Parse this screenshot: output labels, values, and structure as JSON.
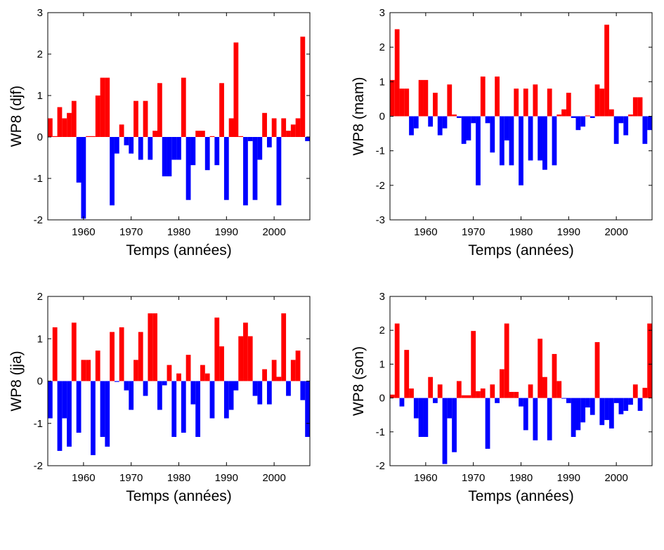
{
  "chart_data": [
    {
      "type": "bar",
      "xlabel": "Temps (années)",
      "ylabel": "WP8 (djf)",
      "x": [
        1953,
        1954,
        1955,
        1956,
        1957,
        1958,
        1959,
        1960,
        1961,
        1962,
        1963,
        1964,
        1965,
        1966,
        1967,
        1968,
        1969,
        1970,
        1971,
        1972,
        1973,
        1974,
        1975,
        1976,
        1977,
        1978,
        1979,
        1980,
        1981,
        1982,
        1983,
        1984,
        1985,
        1986,
        1987,
        1988,
        1989,
        1990,
        1991,
        1992,
        1993,
        1994,
        1995,
        1996,
        1997,
        1998,
        1999,
        2000,
        2001,
        2002,
        2003,
        2004,
        2005,
        2006,
        2007
      ],
      "values": [
        0.45,
        0.02,
        0.72,
        0.45,
        0.58,
        0.87,
        -1.1,
        -1.97,
        0.02,
        0.02,
        1.0,
        1.43,
        1.43,
        -1.65,
        -0.4,
        0.3,
        -0.2,
        -0.4,
        0.87,
        -0.55,
        0.87,
        -0.55,
        0.15,
        1.3,
        -0.95,
        -0.95,
        -0.55,
        -0.55,
        1.43,
        -1.52,
        -0.68,
        0.15,
        0.15,
        -0.8,
        0.02,
        -0.68,
        1.3,
        -1.52,
        0.45,
        2.28,
        0.02,
        -1.65,
        -0.1,
        -1.52,
        -0.55,
        0.58,
        -0.25,
        0.45,
        -1.65,
        0.45,
        0.15,
        0.3,
        0.45,
        2.42,
        -0.1
      ],
      "xlim": [
        1952.5,
        2007.5
      ],
      "ylim": [
        -2,
        3
      ],
      "xticks": [
        1960,
        1970,
        1980,
        1990,
        2000
      ],
      "yticks": [
        -2,
        -1,
        0,
        1,
        2,
        3
      ],
      "positive_color": "#ff0000",
      "negative_color": "#0000ff"
    },
    {
      "type": "bar",
      "xlabel": "Temps (années)",
      "ylabel": "WP8 (mam)",
      "x": [
        1953,
        1954,
        1955,
        1956,
        1957,
        1958,
        1959,
        1960,
        1961,
        1962,
        1963,
        1964,
        1965,
        1966,
        1967,
        1968,
        1969,
        1970,
        1971,
        1972,
        1973,
        1974,
        1975,
        1976,
        1977,
        1978,
        1979,
        1980,
        1981,
        1982,
        1983,
        1984,
        1985,
        1986,
        1987,
        1988,
        1989,
        1990,
        1991,
        1992,
        1993,
        1994,
        1995,
        1996,
        1997,
        1998,
        1999,
        2000,
        2001,
        2002,
        2003,
        2004,
        2005,
        2006,
        2007
      ],
      "values": [
        1.05,
        2.52,
        0.8,
        0.8,
        -0.55,
        -0.35,
        1.05,
        1.05,
        -0.3,
        0.68,
        -0.55,
        -0.35,
        0.92,
        0.05,
        -0.05,
        -0.8,
        -0.7,
        -0.2,
        -2.0,
        1.15,
        -0.2,
        -1.05,
        1.15,
        -1.42,
        -0.7,
        -1.42,
        0.8,
        -2.0,
        0.8,
        -1.28,
        0.92,
        -1.28,
        -1.55,
        0.8,
        -1.42,
        0.05,
        0.2,
        0.68,
        -0.05,
        -0.4,
        -0.3,
        0.02,
        -0.05,
        0.92,
        0.8,
        2.65,
        0.2,
        -0.8,
        -0.2,
        -0.55,
        0.05,
        0.55,
        0.55,
        -0.8,
        -0.4
      ],
      "xlim": [
        1952.5,
        2007.5
      ],
      "ylim": [
        -3,
        3
      ],
      "xticks": [
        1960,
        1970,
        1980,
        1990,
        2000
      ],
      "yticks": [
        -3,
        -2,
        -1,
        0,
        1,
        2,
        3
      ],
      "positive_color": "#ff0000",
      "negative_color": "#0000ff"
    },
    {
      "type": "bar",
      "xlabel": "Temps (années)",
      "ylabel": "WP8 (jja)",
      "x": [
        1953,
        1954,
        1955,
        1956,
        1957,
        1958,
        1959,
        1960,
        1961,
        1962,
        1963,
        1964,
        1965,
        1966,
        1967,
        1968,
        1969,
        1970,
        1971,
        1972,
        1973,
        1974,
        1975,
        1976,
        1977,
        1978,
        1979,
        1980,
        1981,
        1982,
        1983,
        1984,
        1985,
        1986,
        1987,
        1988,
        1989,
        1990,
        1991,
        1992,
        1993,
        1994,
        1995,
        1996,
        1997,
        1998,
        1999,
        2000,
        2001,
        2002,
        2003,
        2004,
        2005,
        2006,
        2007
      ],
      "values": [
        -0.88,
        1.27,
        -1.65,
        -0.88,
        -1.55,
        1.38,
        -1.22,
        0.5,
        0.5,
        -1.75,
        0.72,
        -1.32,
        -1.55,
        1.16,
        -0.02,
        1.27,
        -0.22,
        -0.68,
        0.5,
        1.16,
        -0.35,
        1.6,
        1.6,
        -0.68,
        -0.1,
        0.38,
        -1.32,
        0.18,
        -1.22,
        0.62,
        -0.55,
        -1.32,
        0.38,
        0.18,
        -0.88,
        1.5,
        0.82,
        -0.88,
        -0.68,
        -0.22,
        1.06,
        1.38,
        1.06,
        -0.35,
        -0.55,
        0.28,
        -0.55,
        0.5,
        0.1,
        1.6,
        -0.35,
        0.5,
        0.72,
        -0.45,
        -1.32
      ],
      "xlim": [
        1952.5,
        2007.5
      ],
      "ylim": [
        -2,
        2
      ],
      "xticks": [
        1960,
        1970,
        1980,
        1990,
        2000
      ],
      "yticks": [
        -2,
        -1,
        0,
        1,
        2
      ],
      "positive_color": "#ff0000",
      "negative_color": "#0000ff"
    },
    {
      "type": "bar",
      "xlabel": "Temps (années)",
      "ylabel": "WP8 (son)",
      "x": [
        1953,
        1954,
        1955,
        1956,
        1957,
        1958,
        1959,
        1960,
        1961,
        1962,
        1963,
        1964,
        1965,
        1966,
        1967,
        1968,
        1969,
        1970,
        1971,
        1972,
        1973,
        1974,
        1975,
        1976,
        1977,
        1978,
        1979,
        1980,
        1981,
        1982,
        1983,
        1984,
        1985,
        1986,
        1987,
        1988,
        1989,
        1990,
        1991,
        1992,
        1993,
        1994,
        1995,
        1996,
        1997,
        1998,
        1999,
        2000,
        2001,
        2002,
        2003,
        2004,
        2005,
        2006,
        2007
      ],
      "values": [
        0.1,
        2.2,
        -0.25,
        1.42,
        0.28,
        -0.6,
        -1.15,
        -1.15,
        0.62,
        -0.15,
        0.4,
        -1.95,
        -0.6,
        -1.6,
        0.5,
        0.08,
        0.08,
        1.98,
        0.2,
        0.28,
        -1.5,
        0.4,
        -0.15,
        0.85,
        2.2,
        0.18,
        0.18,
        -0.25,
        -0.95,
        0.4,
        -1.25,
        1.75,
        0.62,
        -1.25,
        1.3,
        0.5,
        -0.02,
        -0.15,
        -1.15,
        -0.95,
        -0.72,
        -0.28,
        -0.5,
        1.65,
        -0.8,
        -0.65,
        -0.9,
        -0.15,
        -0.48,
        -0.38,
        -0.2,
        0.4,
        -0.38,
        0.3,
        2.2
      ],
      "xlim": [
        1952.5,
        2007.5
      ],
      "ylim": [
        -2,
        3
      ],
      "xticks": [
        1960,
        1970,
        1980,
        1990,
        2000
      ],
      "yticks": [
        -2,
        -1,
        0,
        1,
        2,
        3
      ],
      "positive_color": "#ff0000",
      "negative_color": "#0000ff"
    }
  ]
}
